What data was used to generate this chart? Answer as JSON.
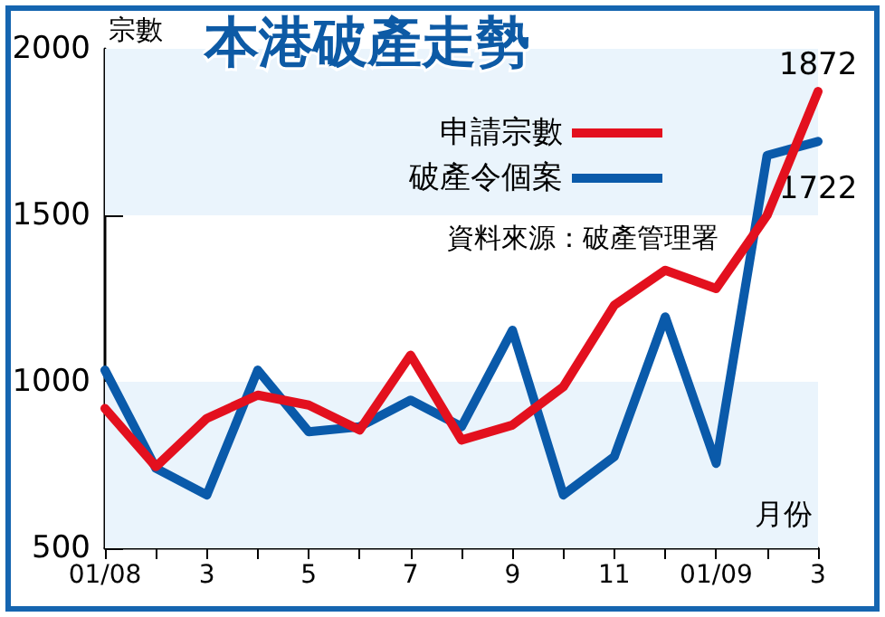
{
  "chart_data": {
    "type": "line",
    "title": "本港破產走勢",
    "ylabel": "宗數",
    "xlabel": "月份",
    "categories": [
      "01/08",
      null,
      "3",
      null,
      "5",
      null,
      "7",
      null,
      "9",
      null,
      "11",
      null,
      "01/09",
      null,
      "3"
    ],
    "series": [
      {
        "name": "申請宗數",
        "color": "#e3101e",
        "values": [
          920,
          745,
          890,
          960,
          930,
          855,
          1080,
          825,
          870,
          985,
          1230,
          1335,
          1280,
          1500,
          1872
        ],
        "value_labels": [
          null,
          null,
          null,
          null,
          null,
          null,
          null,
          null,
          null,
          null,
          null,
          null,
          null,
          null,
          "1872"
        ]
      },
      {
        "name": "破產令個案",
        "color": "#0a5aaa",
        "values": [
          1035,
          740,
          660,
          1035,
          850,
          865,
          945,
          865,
          1155,
          660,
          775,
          1195,
          755,
          1680,
          1722
        ],
        "value_labels": [
          null,
          null,
          null,
          null,
          null,
          null,
          null,
          null,
          null,
          null,
          null,
          null,
          null,
          null,
          "1722"
        ]
      }
    ],
    "ylim": [
      500,
      2000
    ],
    "yticks": [
      500,
      1000,
      1500,
      2000
    ],
    "bands": [
      {
        "axis": "y",
        "from": 500,
        "to": 1000,
        "color": "#eaf4fc"
      },
      {
        "axis": "y",
        "from": 1500,
        "to": 2000,
        "color": "#eaf4fc"
      }
    ],
    "annotations": [
      "資料來源：破產管理署"
    ],
    "legend": "top right",
    "grid": false,
    "marker": "none",
    "line_style": "solid"
  }
}
